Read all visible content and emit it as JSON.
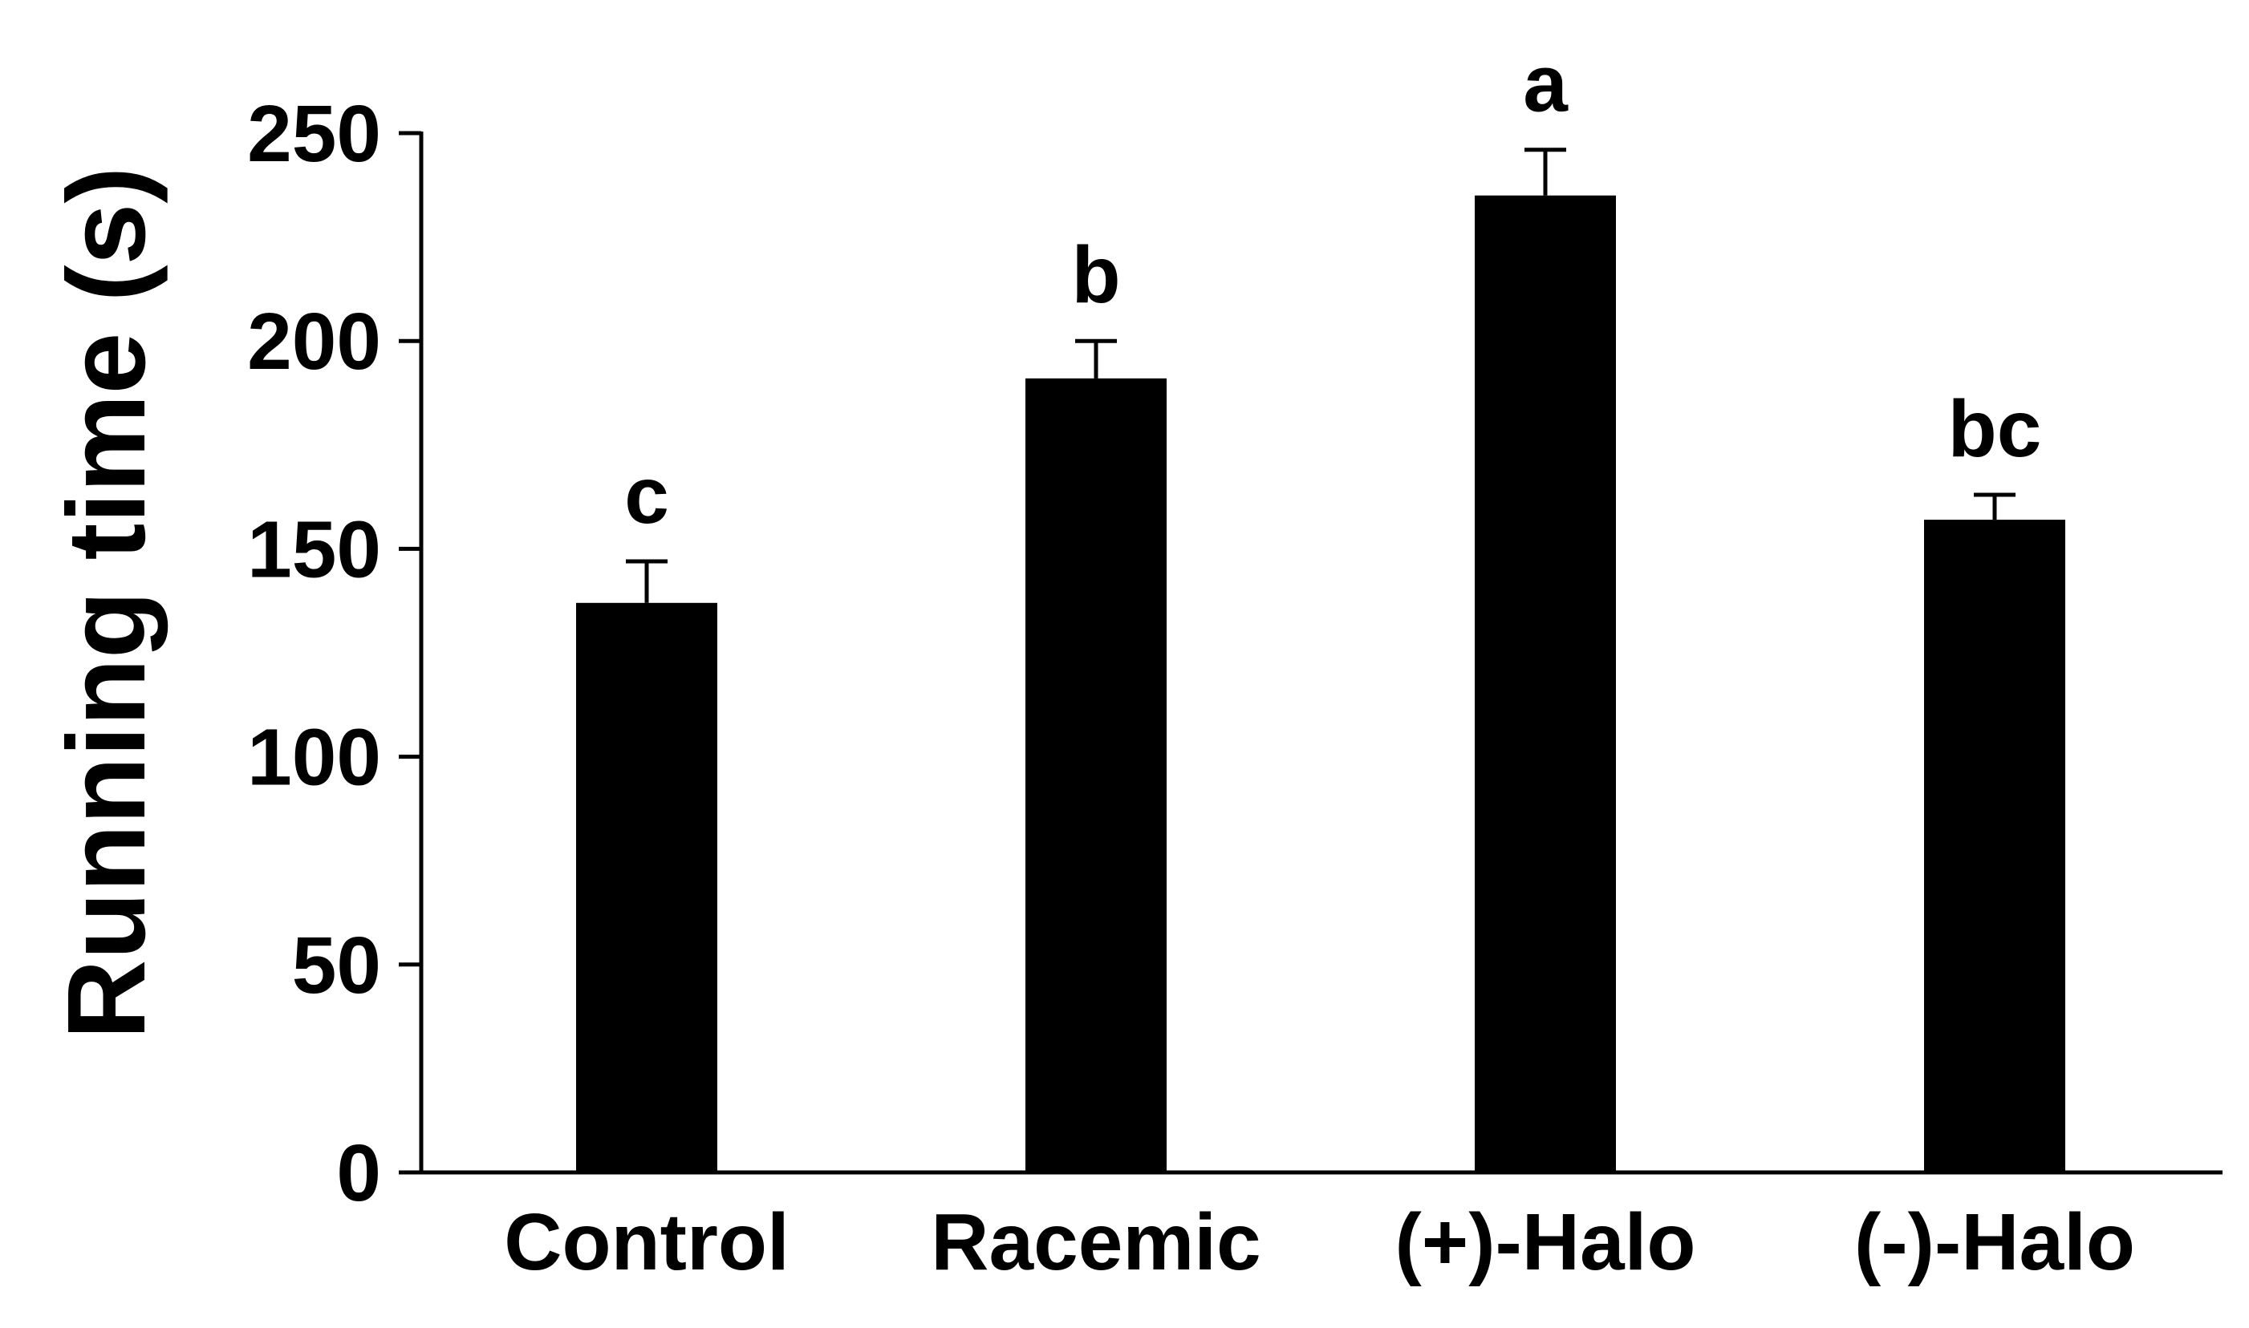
{
  "chart_data": {
    "type": "bar",
    "categories": [
      "Control",
      "Racemic",
      "(+)-Halo",
      "(-)-Halo"
    ],
    "values": [
      137,
      191,
      235,
      157
    ],
    "errors": [
      10,
      9,
      11,
      6
    ],
    "significance_labels": [
      "c",
      "b",
      "a",
      "bc"
    ],
    "title": "",
    "xlabel": "",
    "ylabel": "Running time (s)",
    "ylim": [
      0,
      250
    ],
    "yticks": [
      0,
      50,
      100,
      150,
      200,
      250
    ],
    "grid": false,
    "legend": "none",
    "bar_color": "#000000"
  }
}
